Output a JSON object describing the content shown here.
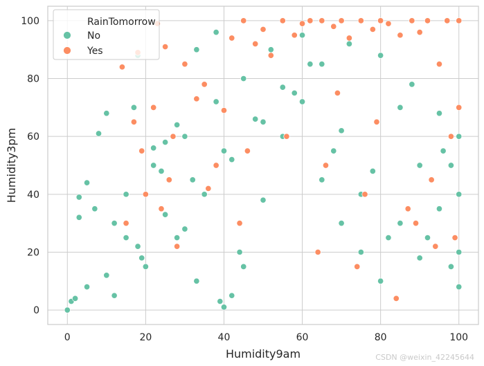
{
  "chart_data": {
    "type": "scatter",
    "xlabel": "Humidity9am",
    "ylabel": "Humidity3pm",
    "xlim": [
      -5,
      105
    ],
    "ylim": [
      -5,
      105
    ],
    "xticks": [
      0,
      20,
      40,
      60,
      80,
      100
    ],
    "yticks": [
      0,
      20,
      40,
      60,
      80,
      100
    ],
    "grid": true,
    "legend": {
      "title": "RainTomorrow",
      "placement": "top-left",
      "entries": [
        "No",
        "Yes"
      ]
    },
    "series": [
      {
        "name": "No",
        "color": "#66c2a5",
        "x": [
          0,
          1,
          2,
          3,
          3,
          5,
          5,
          7,
          8,
          10,
          12,
          15,
          18,
          22,
          25,
          28,
          30,
          33,
          38,
          40,
          42,
          45,
          50,
          55,
          60,
          65,
          70,
          75,
          80,
          85,
          90,
          95,
          100,
          10,
          18,
          25,
          32,
          40,
          48,
          55,
          62,
          70,
          78,
          85,
          92,
          100,
          15,
          22,
          30,
          38,
          45,
          52,
          60,
          68,
          75,
          82,
          90,
          98,
          12,
          20,
          28,
          35,
          42,
          50,
          58,
          65,
          72,
          80,
          88,
          95,
          100,
          100,
          98,
          96,
          17,
          19,
          24,
          33,
          39,
          44
        ],
        "y": [
          0,
          3,
          4,
          39,
          32,
          44,
          8,
          35,
          61,
          68,
          30,
          25,
          88,
          56,
          58,
          64,
          28,
          90,
          96,
          1,
          5,
          15,
          38,
          60,
          72,
          45,
          30,
          20,
          10,
          70,
          50,
          35,
          20,
          12,
          22,
          33,
          45,
          55,
          66,
          77,
          85,
          62,
          48,
          30,
          25,
          8,
          40,
          50,
          60,
          72,
          80,
          90,
          95,
          55,
          40,
          25,
          18,
          15,
          5,
          15,
          25,
          40,
          52,
          65,
          75,
          85,
          92,
          88,
          78,
          68,
          60,
          40,
          50,
          55,
          70,
          18,
          48,
          10,
          3,
          20
        ]
      },
      {
        "name": "Yes",
        "color": "#fc8d62",
        "x": [
          14,
          15,
          17,
          18,
          20,
          22,
          23,
          25,
          27,
          30,
          33,
          35,
          38,
          40,
          42,
          45,
          48,
          50,
          52,
          55,
          58,
          60,
          62,
          65,
          68,
          70,
          72,
          75,
          78,
          80,
          82,
          84,
          85,
          88,
          90,
          92,
          95,
          97,
          100,
          100,
          98,
          93,
          87,
          76,
          66,
          56,
          46,
          36,
          26,
          24,
          19,
          28,
          44,
          64,
          74,
          94,
          99,
          89,
          79,
          69
        ],
        "y": [
          84,
          30,
          65,
          89,
          40,
          70,
          99,
          91,
          60,
          85,
          73,
          78,
          50,
          69,
          94,
          100,
          92,
          97,
          88,
          100,
          95,
          99,
          100,
          100,
          98,
          100,
          94,
          100,
          97,
          100,
          99,
          4,
          95,
          100,
          96,
          100,
          85,
          100,
          100,
          70,
          60,
          45,
          35,
          40,
          50,
          60,
          55,
          42,
          45,
          35,
          55,
          22,
          30,
          20,
          15,
          22,
          25,
          30,
          65,
          75
        ]
      }
    ]
  },
  "watermark": "CSDN @weixin_42245644"
}
